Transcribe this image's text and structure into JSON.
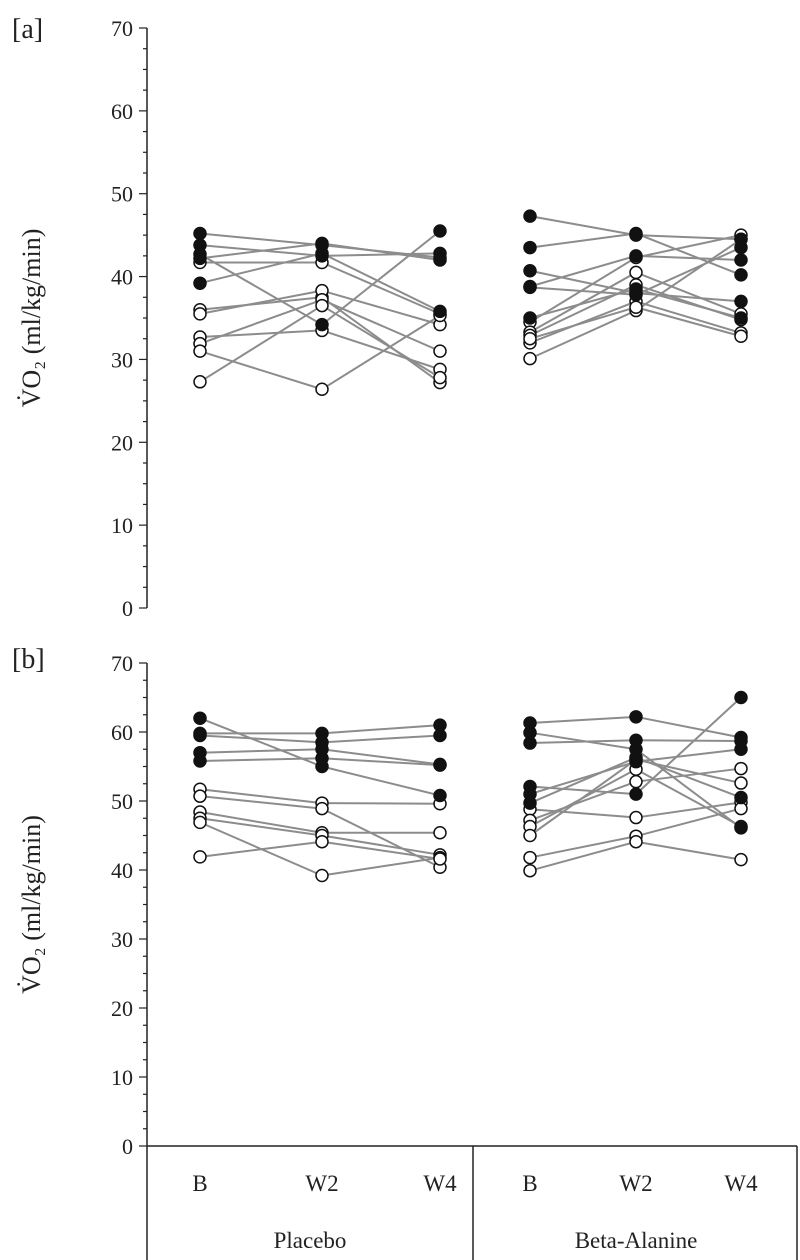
{
  "colors": {
    "axis": "#222222",
    "line": "#8c8c8c",
    "filled": "#111111",
    "open_fill": "#ffffff"
  },
  "chart_data": [
    {
      "type": "line",
      "panel_label": "[a]",
      "ylabel": "V̇O₂ (ml/kg/min)",
      "ylim": [
        0,
        70
      ],
      "yticks": [
        0,
        10,
        20,
        30,
        40,
        50,
        60,
        70
      ],
      "categories": [
        "B",
        "W2",
        "W4"
      ],
      "groups": [
        {
          "name": "Placebo",
          "filled": [
            [
              45.2,
              43.8,
              42.3
            ],
            [
              43.8,
              42.5,
              42.8
            ],
            [
              42.7,
              34.2,
              45.5
            ],
            [
              39.2,
              42.8,
              35.8
            ],
            [
              42.2,
              44.0,
              42.0
            ]
          ],
          "open": [
            [
              41.7,
              41.7,
              35.5
            ],
            [
              36.0,
              37.5,
              27.2
            ],
            [
              35.5,
              38.3,
              34.2
            ],
            [
              32.7,
              33.5,
              28.8
            ],
            [
              31.9,
              37.2,
              31.0
            ],
            [
              31.0,
              26.4,
              35.3
            ],
            [
              27.3,
              36.5,
              27.8
            ]
          ]
        },
        {
          "name": "Beta-Alanine",
          "filled": [
            [
              47.3,
              45.0,
              44.5
            ],
            [
              43.5,
              45.2,
              40.2
            ],
            [
              40.7,
              38.0,
              37.0
            ],
            [
              38.8,
              42.5,
              42.0
            ],
            [
              38.7,
              37.8,
              43.5
            ],
            [
              35.0,
              38.5,
              35.0
            ]
          ],
          "open": [
            [
              34.5,
              42.3,
              45.0
            ],
            [
              33.3,
              40.5,
              35.5
            ],
            [
              32.9,
              39.0,
              34.8
            ],
            [
              32.0,
              37.0,
              33.2
            ],
            [
              30.1,
              35.9,
              44.5
            ],
            [
              32.5,
              36.3,
              32.8
            ]
          ]
        }
      ]
    },
    {
      "type": "line",
      "panel_label": "[b]",
      "ylabel": "V̇O₂ (ml/kg/min)",
      "ylim": [
        0,
        70
      ],
      "yticks": [
        0,
        10,
        20,
        30,
        40,
        50,
        60,
        70
      ],
      "categories": [
        "B",
        "W2",
        "W4"
      ],
      "groups": [
        {
          "name": "Placebo",
          "filled": [
            [
              62.0,
              55.0,
              50.8
            ],
            [
              59.8,
              59.8,
              61.0
            ],
            [
              59.5,
              58.5,
              59.5
            ],
            [
              57.0,
              57.5,
              55.3
            ],
            [
              55.8,
              56.2,
              55.2
            ]
          ],
          "open": [
            [
              51.7,
              49.7,
              49.6
            ],
            [
              50.7,
              48.9,
              40.4
            ],
            [
              48.4,
              45.4,
              45.4
            ],
            [
              47.5,
              45.0,
              42.2
            ],
            [
              46.9,
              39.2,
              41.8
            ],
            [
              41.9,
              44.1,
              41.6
            ]
          ]
        },
        {
          "name": "Beta-Alanine",
          "filled": [
            [
              61.3,
              62.2,
              59.2
            ],
            [
              59.9,
              57.5,
              46.1
            ],
            [
              58.4,
              58.8,
              58.7
            ],
            [
              52.1,
              51.0,
              65.0
            ],
            [
              51.0,
              55.7,
              57.5
            ],
            [
              49.7,
              56.3,
              50.5
            ]
          ],
          "open": [
            [
              48.8,
              47.6,
              49.8
            ],
            [
              47.2,
              52.8,
              54.7
            ],
            [
              46.3,
              54.6,
              46.3
            ],
            [
              45.0,
              56.0,
              52.6
            ],
            [
              41.8,
              44.9,
              48.9
            ],
            [
              39.9,
              44.1,
              41.5
            ]
          ]
        }
      ]
    }
  ],
  "x_axis": {
    "category_labels": [
      "B",
      "W2",
      "W4",
      "B",
      "W2",
      "W4"
    ],
    "group_labels": [
      "Placebo",
      "Beta-Alanine"
    ]
  }
}
